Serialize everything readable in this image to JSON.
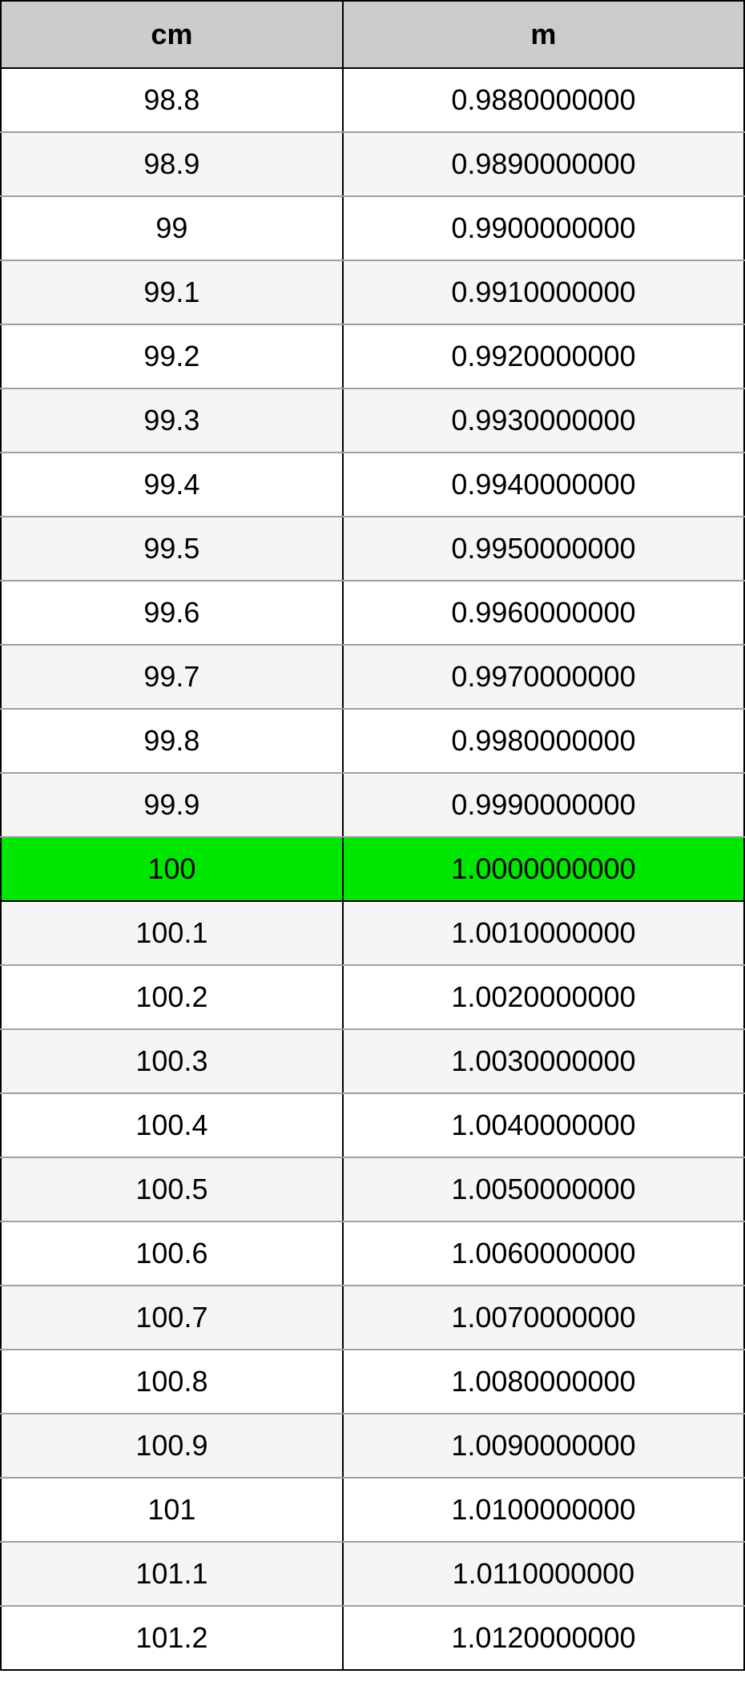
{
  "table": {
    "type": "table",
    "columns": [
      {
        "label": "cm",
        "width_pct": 46,
        "align": "center"
      },
      {
        "label": "m",
        "width_pct": 54,
        "align": "center"
      }
    ],
    "header_bg": "#cccccc",
    "header_border": "#000000",
    "row_bg_even": "#ffffff",
    "row_bg_odd": "#f5f5f5",
    "highlight_bg": "#00e600",
    "border_color_outer": "#000000",
    "border_color_inner": "#a0a0a0",
    "font_family": "Arial, Helvetica, sans-serif",
    "header_font_size": 36,
    "header_font_weight": "bold",
    "cell_font_size": 36,
    "text_color": "#000000",
    "rows": [
      {
        "cm": "98.8",
        "m": "0.9880000000",
        "highlight": false
      },
      {
        "cm": "98.9",
        "m": "0.9890000000",
        "highlight": false
      },
      {
        "cm": "99",
        "m": "0.9900000000",
        "highlight": false
      },
      {
        "cm": "99.1",
        "m": "0.9910000000",
        "highlight": false
      },
      {
        "cm": "99.2",
        "m": "0.9920000000",
        "highlight": false
      },
      {
        "cm": "99.3",
        "m": "0.9930000000",
        "highlight": false
      },
      {
        "cm": "99.4",
        "m": "0.9940000000",
        "highlight": false
      },
      {
        "cm": "99.5",
        "m": "0.9950000000",
        "highlight": false
      },
      {
        "cm": "99.6",
        "m": "0.9960000000",
        "highlight": false
      },
      {
        "cm": "99.7",
        "m": "0.9970000000",
        "highlight": false
      },
      {
        "cm": "99.8",
        "m": "0.9980000000",
        "highlight": false
      },
      {
        "cm": "99.9",
        "m": "0.9990000000",
        "highlight": false
      },
      {
        "cm": "100",
        "m": "1.0000000000",
        "highlight": true
      },
      {
        "cm": "100.1",
        "m": "1.0010000000",
        "highlight": false
      },
      {
        "cm": "100.2",
        "m": "1.0020000000",
        "highlight": false
      },
      {
        "cm": "100.3",
        "m": "1.0030000000",
        "highlight": false
      },
      {
        "cm": "100.4",
        "m": "1.0040000000",
        "highlight": false
      },
      {
        "cm": "100.5",
        "m": "1.0050000000",
        "highlight": false
      },
      {
        "cm": "100.6",
        "m": "1.0060000000",
        "highlight": false
      },
      {
        "cm": "100.7",
        "m": "1.0070000000",
        "highlight": false
      },
      {
        "cm": "100.8",
        "m": "1.0080000000",
        "highlight": false
      },
      {
        "cm": "100.9",
        "m": "1.0090000000",
        "highlight": false
      },
      {
        "cm": "101",
        "m": "1.0100000000",
        "highlight": false
      },
      {
        "cm": "101.1",
        "m": "1.0110000000",
        "highlight": false
      },
      {
        "cm": "101.2",
        "m": "1.0120000000",
        "highlight": false
      }
    ]
  }
}
